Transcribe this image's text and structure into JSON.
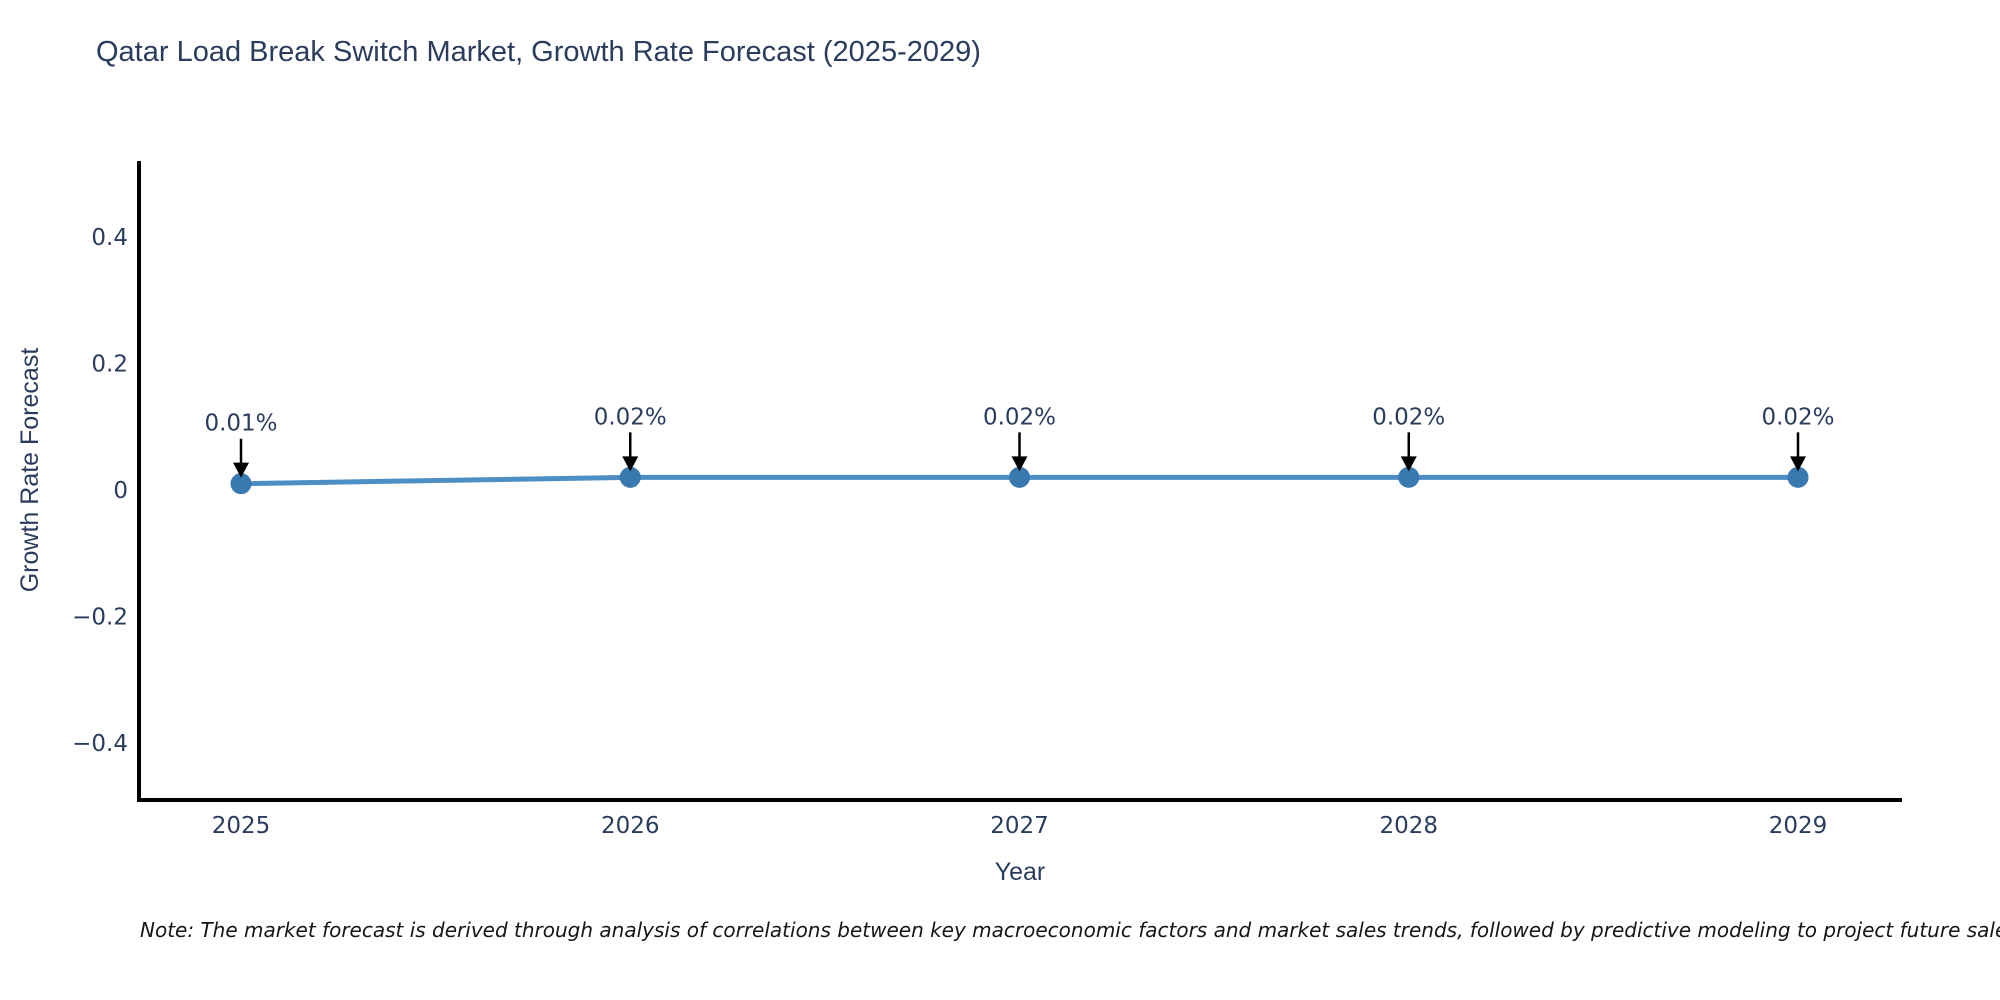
{
  "chart_data": {
    "type": "line",
    "title": "Qatar Load Break Switch Market, Growth Rate Forecast (2025-2029)",
    "xlabel": "Year",
    "ylabel": "Growth Rate Forecast",
    "x": [
      2025,
      2026,
      2027,
      2028,
      2029
    ],
    "series": [
      {
        "name": "Growth Rate Forecast",
        "values": [
          0.01,
          0.02,
          0.02,
          0.02,
          0.02
        ],
        "point_labels": [
          "0.01%",
          "0.02%",
          "0.02%",
          "0.02%",
          "0.02%"
        ]
      }
    ],
    "yticks": [
      {
        "value": -0.4,
        "label": "−0.4"
      },
      {
        "value": -0.2,
        "label": "−0.2"
      },
      {
        "value": 0,
        "label": "0"
      },
      {
        "value": 0.2,
        "label": "0.2"
      },
      {
        "value": 0.4,
        "label": "0.4"
      }
    ],
    "xlim": [
      2024.74,
      2025.27
    ],
    "ylim": [
      -0.49,
      0.52
    ],
    "grid": false,
    "legend": "none",
    "annotation_style": "down-arrow",
    "note": "Note: The market forecast is derived through analysis of correlations between key macroeconomic factors and market sales trends, followed by predictive modeling to project future sales",
    "colors": {
      "line": "#4d8ec3",
      "marker": "#3a78b0",
      "text": "#2b3d5c",
      "axis": "#000000",
      "arrow": "#000000",
      "note_text": "#161616",
      "background": "#ffffff"
    }
  }
}
